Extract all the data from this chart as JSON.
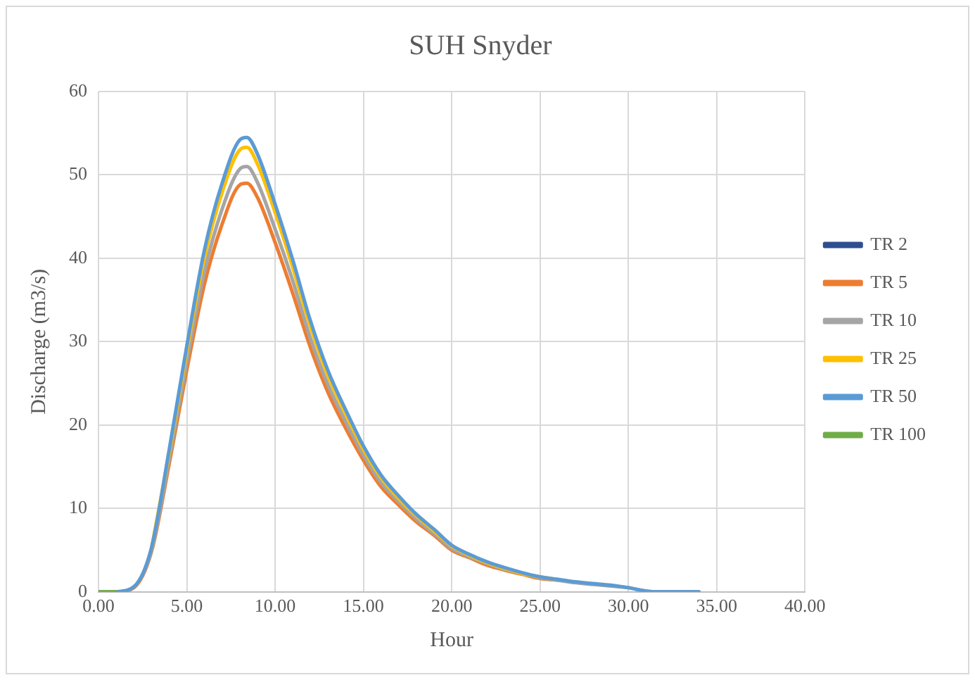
{
  "chart_data": {
    "type": "line",
    "title": "SUH Snyder",
    "xlabel": "Hour",
    "ylabel": "Discharge (m3/s)",
    "x": [
      0,
      1,
      2,
      3,
      4,
      5,
      6,
      7,
      8,
      8.4,
      9,
      10,
      11,
      12,
      13,
      14,
      15,
      16,
      17,
      18,
      19,
      20,
      21,
      22,
      23,
      24,
      25,
      26,
      27,
      28,
      29,
      30,
      31,
      32,
      33,
      34
    ],
    "series": [
      {
        "name": "TR 2",
        "color": "#2e4f8f",
        "values": [
          null,
          null,
          null,
          null,
          null,
          null,
          null,
          null,
          null,
          null,
          null,
          null,
          null,
          null,
          null,
          null,
          null,
          null,
          null,
          null,
          null,
          null,
          null,
          null,
          null,
          null,
          null,
          null,
          null,
          null,
          null,
          null,
          null,
          null,
          null,
          null
        ]
      },
      {
        "name": "TR 5",
        "color": "#ed7d31",
        "values": [
          0,
          0,
          0.5,
          4.8,
          15.3,
          26.6,
          36.9,
          44.1,
          48.8,
          49,
          47.3,
          41.9,
          35.8,
          29.3,
          23.9,
          19.6,
          15.8,
          12.6,
          10.4,
          8.4,
          6.8,
          5,
          4.1,
          3.2,
          2.6,
          2.1,
          1.6,
          1.4,
          null,
          null,
          null,
          null,
          null,
          null,
          null,
          null
        ]
      },
      {
        "name": "TR 10",
        "color": "#a5a5a5",
        "values": [
          0,
          0,
          0.6,
          5,
          15.9,
          27.6,
          38.4,
          45.9,
          50.7,
          51,
          49.1,
          43.5,
          37.3,
          30.4,
          24.8,
          20.4,
          16.4,
          13.1,
          10.8,
          8.7,
          7,
          5.2,
          4.2,
          3.4,
          2.7,
          2.2,
          1.7,
          1.4,
          1.1,
          0.9,
          0.7,
          0.5,
          0.1,
          0,
          0,
          0
        ]
      },
      {
        "name": "TR 25",
        "color": "#ffc000",
        "values": [
          null,
          null,
          null,
          5.2,
          16.6,
          28.9,
          40.1,
          47.9,
          53,
          53.3,
          51.3,
          45.5,
          38.9,
          31.8,
          25.9,
          21.3,
          17.1,
          13.7,
          11.2,
          9.1,
          7.3,
          5.5,
          4.4,
          3.5,
          2.8,
          2.2,
          1.8,
          1.5,
          null,
          null,
          null,
          null,
          null,
          null,
          null,
          null
        ]
      },
      {
        "name": "TR 50",
        "color": "#5b9bd5",
        "values": [
          null,
          0,
          0.6,
          5.3,
          17,
          29.5,
          41,
          49,
          54.2,
          54.5,
          52.5,
          46.5,
          39.8,
          32.5,
          26.5,
          21.8,
          17.5,
          14,
          11.5,
          9.3,
          7.5,
          5.6,
          4.5,
          3.6,
          2.9,
          2.3,
          1.8,
          1.5,
          1.2,
          1,
          0.8,
          0.5,
          0.1,
          0,
          0,
          0
        ]
      },
      {
        "name": "TR 100",
        "color": "#70ad47",
        "values": [
          0,
          0,
          null,
          null,
          null,
          null,
          null,
          null,
          null,
          null,
          null,
          null,
          null,
          null,
          null,
          null,
          null,
          null,
          null,
          null,
          null,
          null,
          null,
          null,
          null,
          null,
          null,
          null,
          null,
          null,
          null,
          null,
          null,
          null,
          null,
          null
        ]
      }
    ],
    "xlim": [
      0,
      40
    ],
    "xticks": [
      {
        "value": 0,
        "label": "0.00"
      },
      {
        "value": 5,
        "label": "5.00"
      },
      {
        "value": 10,
        "label": "10.00"
      },
      {
        "value": 15,
        "label": "15.00"
      },
      {
        "value": 20,
        "label": "20.00"
      },
      {
        "value": 25,
        "label": "25.00"
      },
      {
        "value": 30,
        "label": "30.00"
      },
      {
        "value": 35,
        "label": "35.00"
      },
      {
        "value": 40,
        "label": "40.00"
      }
    ],
    "ylim": [
      0,
      60
    ],
    "yticks": [
      0,
      10,
      20,
      30,
      40,
      50,
      60
    ],
    "grid": true,
    "legend": "right",
    "marker": "none",
    "line_style": "solid"
  }
}
